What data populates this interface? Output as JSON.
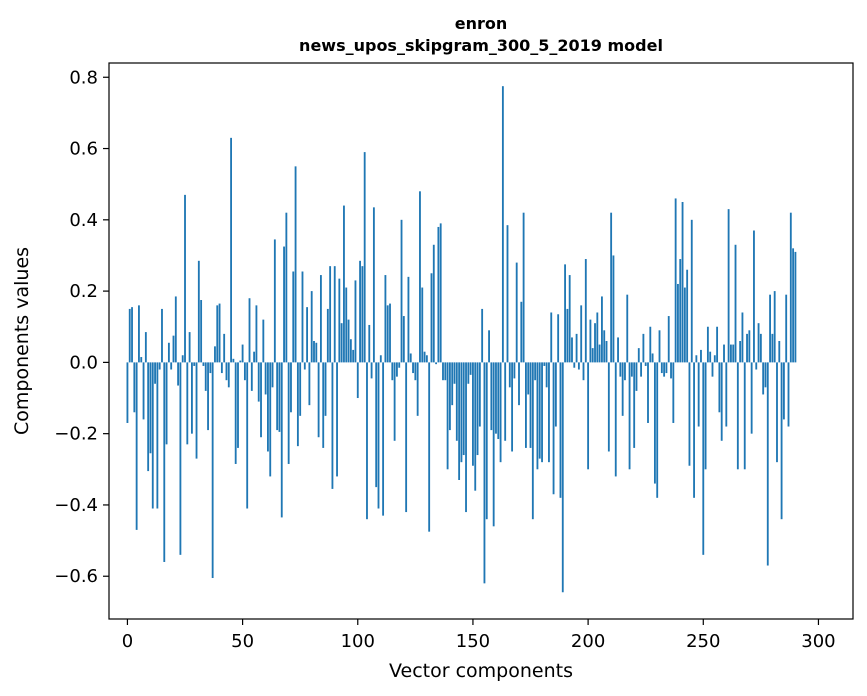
{
  "chart_data": {
    "type": "bar",
    "title": "enron",
    "subtitle": "news_upos_skipgram_300_5_2019 model",
    "xlabel": "Vector components",
    "ylabel": "Components values",
    "xlim": [
      -8,
      315
    ],
    "ylim": [
      -0.72,
      0.84
    ],
    "x_ticks": [
      0,
      50,
      100,
      150,
      200,
      250,
      300
    ],
    "x_tick_labels": [
      "0",
      "50",
      "100",
      "150",
      "200",
      "250",
      "300"
    ],
    "y_ticks": [
      -0.6,
      -0.4,
      -0.2,
      0.0,
      0.2,
      0.4,
      0.6,
      0.8
    ],
    "y_tick_labels": [
      "−0.6",
      "−0.4",
      "−0.2",
      "0.0",
      "0.2",
      "0.4",
      "0.6",
      "0.8"
    ],
    "grid": false,
    "bar_color": "#1f77b4",
    "values": [
      -0.17,
      0.15,
      0.155,
      -0.14,
      -0.47,
      0.16,
      0.015,
      -0.16,
      0.085,
      -0.305,
      -0.255,
      -0.41,
      -0.06,
      -0.41,
      -0.02,
      0.15,
      -0.56,
      -0.23,
      0.055,
      -0.02,
      0.075,
      0.185,
      -0.065,
      -0.54,
      0.02,
      0.47,
      -0.23,
      0.085,
      -0.2,
      -0.01,
      -0.27,
      0.285,
      0.175,
      -0.01,
      -0.08,
      -0.19,
      -0.03,
      -0.605,
      0.045,
      0.16,
      0.165,
      -0.03,
      0.08,
      -0.05,
      -0.07,
      0.63,
      0.01,
      -0.285,
      -0.24,
      0.005,
      0.05,
      -0.05,
      -0.41,
      0.18,
      -0.08,
      0.03,
      0.16,
      -0.11,
      -0.21,
      0.12,
      -0.09,
      -0.25,
      -0.32,
      -0.07,
      0.345,
      -0.19,
      -0.195,
      -0.435,
      0.325,
      0.42,
      -0.285,
      -0.14,
      0.255,
      0.55,
      -0.235,
      -0.15,
      0.255,
      -0.02,
      0.155,
      -0.12,
      0.2,
      0.06,
      0.055,
      -0.21,
      0.245,
      -0.24,
      -0.15,
      0.15,
      0.27,
      -0.355,
      0.27,
      -0.32,
      0.235,
      0.11,
      0.44,
      0.21,
      0.12,
      0.065,
      0.035,
      0.23,
      -0.1,
      0.285,
      0.27,
      0.59,
      -0.44,
      0.105,
      -0.045,
      0.435,
      -0.35,
      -0.41,
      0.02,
      -0.43,
      0.245,
      0.16,
      0.165,
      -0.05,
      -0.22,
      -0.04,
      -0.015,
      0.4,
      0.13,
      -0.42,
      0.24,
      0.025,
      -0.03,
      -0.05,
      -0.15,
      0.48,
      0.21,
      0.03,
      0.02,
      -0.475,
      0.25,
      0.33,
      -0.005,
      0.38,
      0.39,
      -0.05,
      -0.05,
      -0.3,
      -0.19,
      -0.12,
      -0.06,
      -0.22,
      -0.33,
      -0.28,
      -0.26,
      -0.42,
      -0.06,
      -0.035,
      -0.29,
      -0.36,
      -0.26,
      -0.18,
      0.15,
      -0.62,
      -0.44,
      0.09,
      -0.19,
      -0.46,
      -0.2,
      -0.215,
      -0.28,
      0.775,
      -0.22,
      0.385,
      -0.07,
      -0.25,
      -0.045,
      0.28,
      -0.12,
      0.17,
      0.42,
      -0.24,
      -0.09,
      -0.24,
      -0.44,
      -0.05,
      -0.3,
      -0.27,
      -0.28,
      -0.01,
      -0.07,
      -0.28,
      0.14,
      -0.37,
      -0.18,
      0.135,
      -0.38,
      -0.645,
      0.275,
      0.15,
      0.245,
      0.07,
      -0.015,
      0.08,
      -0.02,
      0.16,
      -0.05,
      0.29,
      -0.3,
      0.12,
      0.04,
      0.11,
      0.14,
      0.05,
      0.185,
      0.09,
      0.06,
      -0.25,
      0.42,
      0.3,
      -0.32,
      0.07,
      -0.04,
      -0.15,
      -0.05,
      0.19,
      -0.3,
      -0.04,
      -0.24,
      -0.08,
      0.04,
      -0.04,
      0.08,
      -0.01,
      -0.17,
      0.1,
      0.025,
      -0.34,
      -0.38,
      0.09,
      -0.03,
      -0.04,
      -0.03,
      0.13,
      -0.045,
      -0.17,
      0.46,
      0.22,
      0.29,
      0.45,
      0.21,
      0.26,
      -0.29,
      0.4,
      -0.38,
      0.02,
      -0.18,
      0.035,
      -0.54,
      -0.3,
      0.1,
      0.03,
      -0.04,
      0.02,
      0.1,
      -0.14,
      -0.22,
      0.05,
      -0.18,
      0.43,
      0.05,
      0.05,
      0.33,
      -0.3,
      0.06,
      0.14,
      -0.3,
      0.08,
      0.09,
      -0.2,
      0.37,
      -0.02,
      0.11,
      0.08,
      -0.09,
      -0.07,
      -0.57,
      0.19,
      0.08,
      0.2,
      -0.28,
      0.06,
      -0.44,
      -0.16,
      0.19,
      -0.18,
      0.42,
      0.32,
      0.31
    ]
  }
}
